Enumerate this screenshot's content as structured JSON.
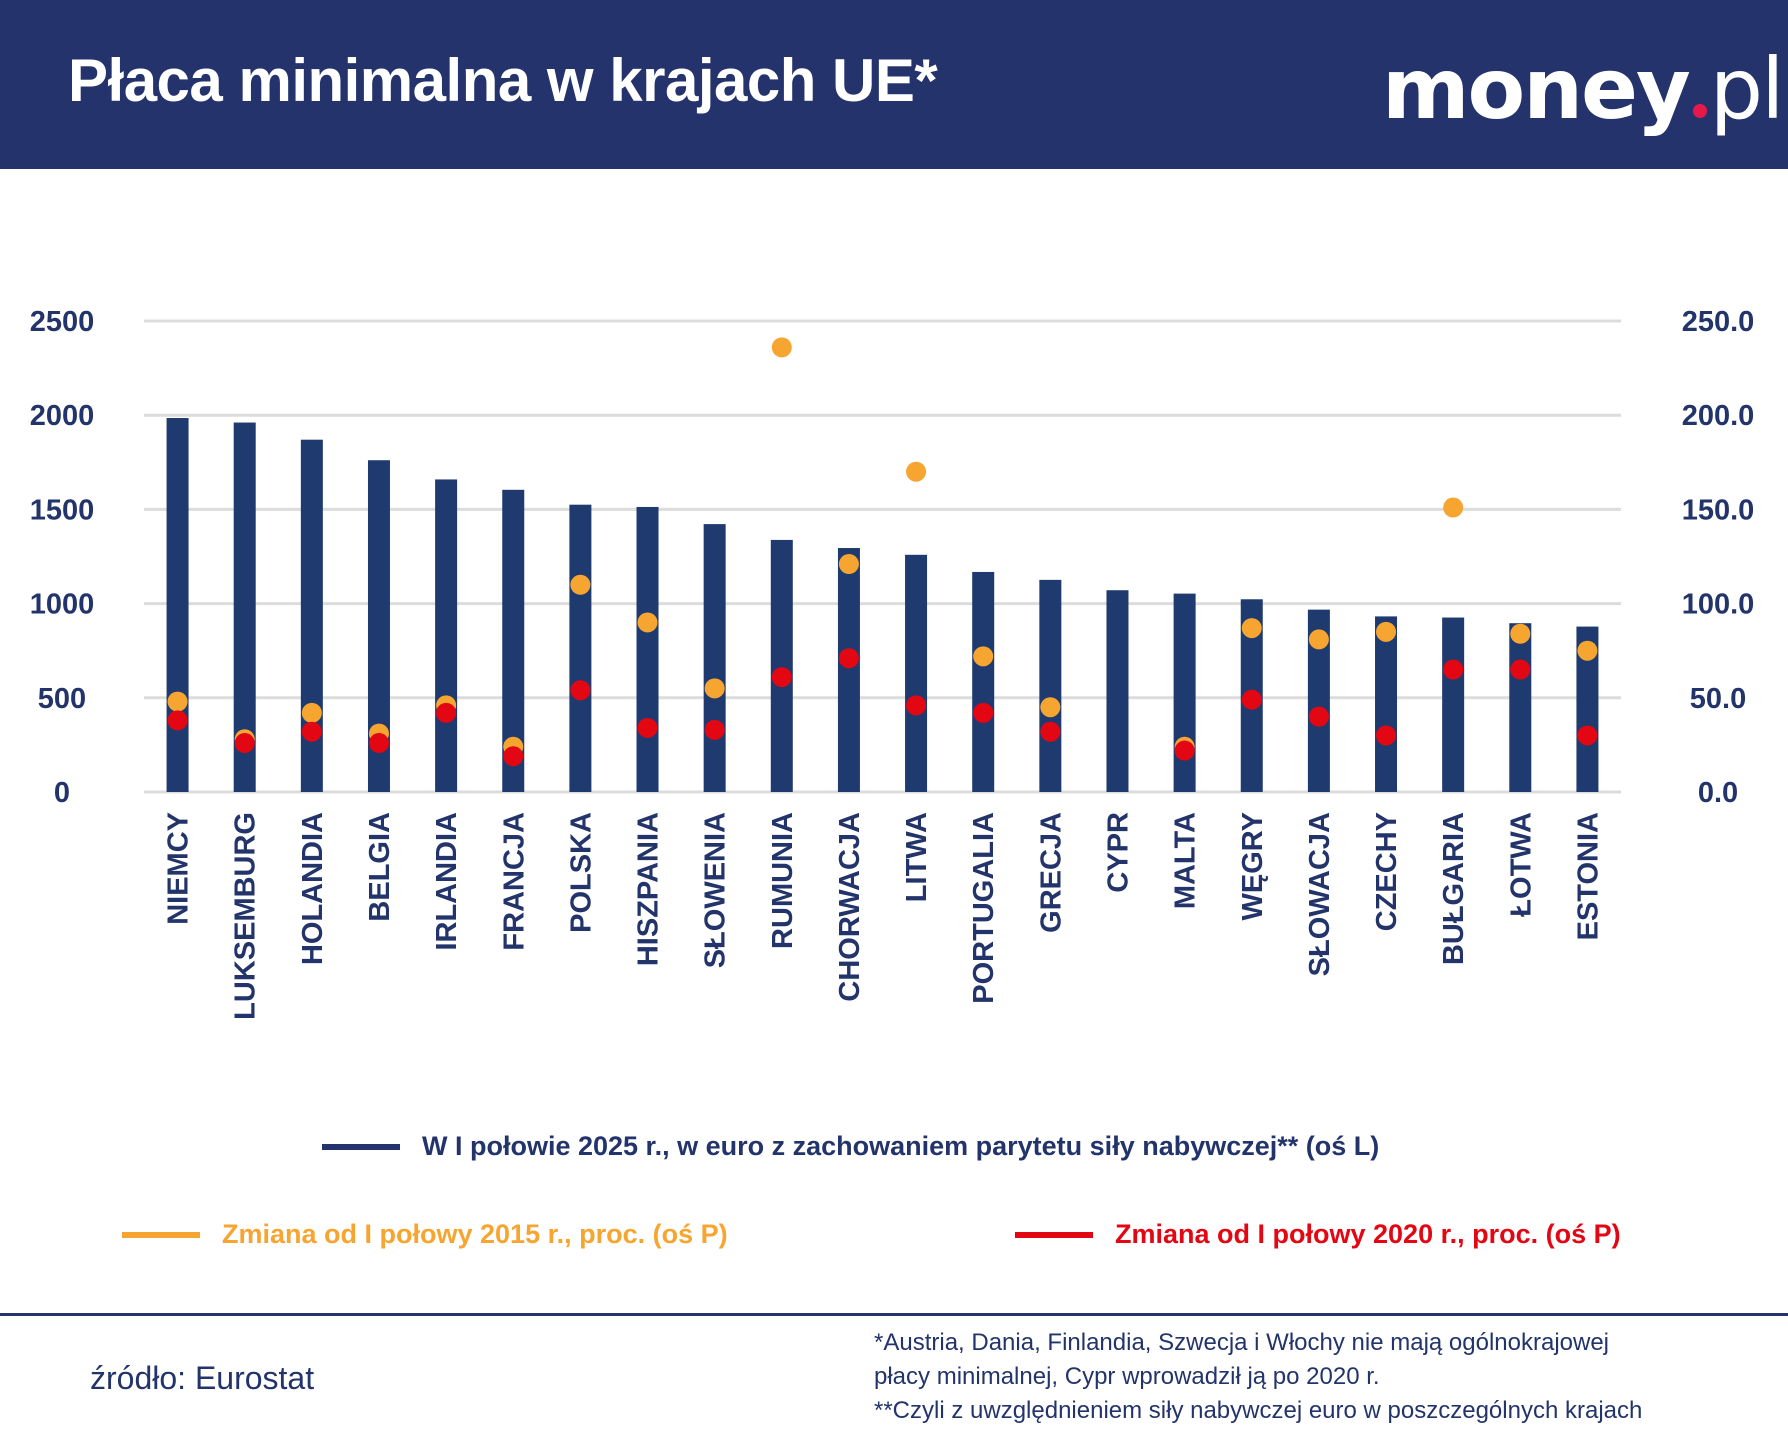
{
  "header": {
    "title": "Płaca minimalna w krajach UE*",
    "logo": "money.pl"
  },
  "colors": {
    "header_bg": "#25336d",
    "bar": "#1f3a6e",
    "dot2015": "#f7a531",
    "dot2020": "#e30613",
    "grid": "#dcdcdc"
  },
  "chart_data": {
    "type": "bar",
    "categories": [
      "NIEMCY",
      "LUKSEMBURG",
      "HOLANDIA",
      "BELGIA",
      "IRLANDIA",
      "FRANCJA",
      "POLSKA",
      "HISZPANIA",
      "SŁOWENIA",
      "RUMUNIA",
      "CHORWACJA",
      "LITWA",
      "PORTUGALIA",
      "GRECJA",
      "CYPR",
      "MALTA",
      "WĘGRY",
      "SŁOWACJA",
      "CZECHY",
      "BUŁGARIA",
      "ŁOTWA",
      "ESTONIA"
    ],
    "series": [
      {
        "name": "W I połowie 2025 r., w euro z zachowaniem parytetu siły nabywczej** (oś L)",
        "type": "bar",
        "axis": "left",
        "values": [
          1985,
          1961,
          1870,
          1761,
          1659,
          1604,
          1525,
          1513,
          1422,
          1338,
          1295,
          1259,
          1168,
          1126,
          1071,
          1053,
          1023,
          968,
          932,
          926,
          896,
          878
        ]
      },
      {
        "name": "Zmiana od I połowy 2015 r., proc. (oś P)",
        "type": "scatter",
        "axis": "right",
        "values": [
          48,
          28,
          42,
          31,
          46,
          24,
          110,
          90,
          55,
          236,
          121,
          170,
          72,
          45,
          null,
          24,
          87,
          81,
          85,
          151,
          84,
          75
        ]
      },
      {
        "name": "Zmiana od I połowy 2020 r., proc. (oś P)",
        "type": "scatter",
        "axis": "right",
        "values": [
          38,
          26,
          32,
          26,
          42,
          19,
          54,
          34,
          33,
          61,
          71,
          46,
          42,
          32,
          null,
          22,
          49,
          40,
          30,
          65,
          65,
          30
        ]
      }
    ],
    "yleft": {
      "range": [
        0,
        2500
      ],
      "ticks": [
        "0",
        "500",
        "1000",
        "1500",
        "2000",
        "2500"
      ]
    },
    "yright": {
      "range": [
        0,
        250
      ],
      "ticks": [
        "0.0",
        "50.0",
        "100.0",
        "150.0",
        "200.0",
        "250.0"
      ]
    },
    "grid": true,
    "legend_placement": "bottom"
  },
  "footer": {
    "source": "źródło: Eurostat",
    "notes": [
      "*Austria, Dania, Finlandia, Szwecja i Włochy nie mają ogólnokrajowej",
      "płacy minimalnej, Cypr wprowadził ją po 2020 r.",
      "**Czyli z uwzględnieniem siły nabywczej euro w poszczególnych krajach"
    ]
  }
}
